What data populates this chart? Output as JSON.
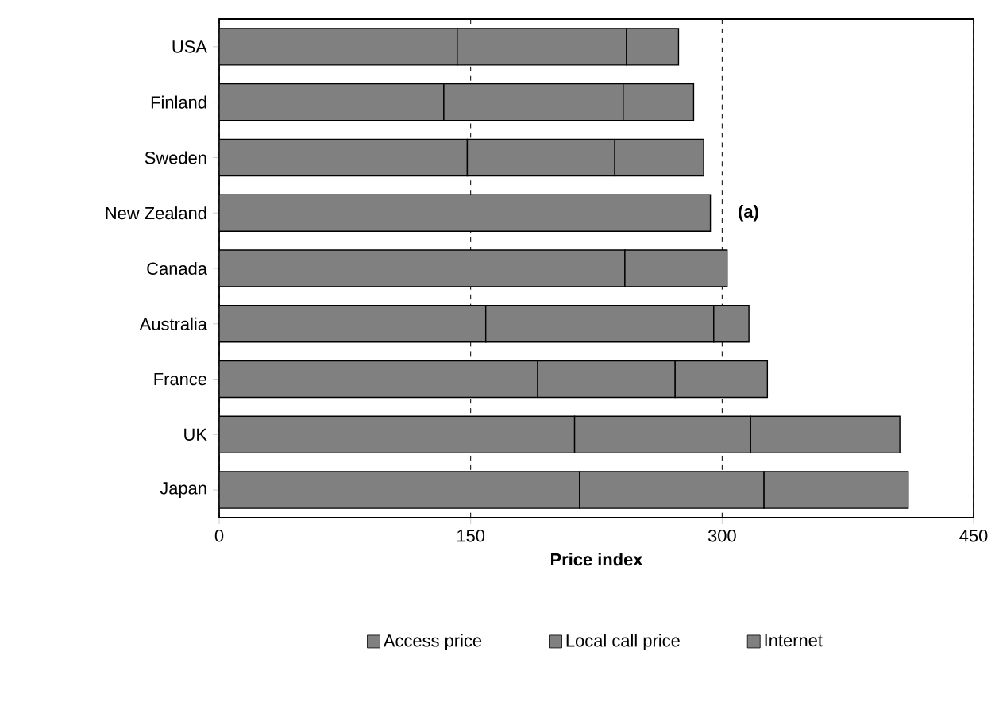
{
  "chart_data": {
    "type": "bar",
    "orientation": "horizontal",
    "stacked": true,
    "categories": [
      "USA",
      "Finland",
      "Sweden",
      "New Zealand",
      "Canada",
      "Australia",
      "France",
      "UK",
      "Japan"
    ],
    "series": [
      {
        "name": "Access price",
        "color": "#808080",
        "values": [
          142,
          134,
          148,
          293,
          242,
          159,
          190,
          212,
          215
        ]
      },
      {
        "name": "Local call price",
        "color": "#808080",
        "values": [
          101,
          107,
          88,
          null,
          null,
          136,
          82,
          105,
          110
        ]
      },
      {
        "name": "Internet",
        "color": "#808080",
        "values": [
          31,
          42,
          53,
          null,
          61,
          21,
          55,
          89,
          86
        ]
      }
    ],
    "xlabel": "Price index",
    "xlim": [
      0,
      450
    ],
    "xticks": [
      0,
      150,
      300,
      450
    ],
    "grid": "x",
    "legend": "bottom",
    "annotations": [
      "(a)"
    ]
  }
}
